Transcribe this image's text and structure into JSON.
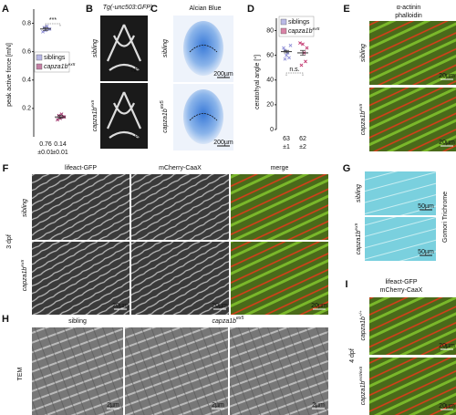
{
  "A": {
    "label": "A",
    "significance": "***",
    "y_label": "peak active force [mN]",
    "ylim": [
      0,
      0.9
    ],
    "yticks": [
      0.2,
      0.4,
      0.6,
      0.8
    ],
    "legend": [
      {
        "name": "siblings",
        "color": "#8c8cd6"
      },
      {
        "name": "capza1b",
        "sup": "ex5",
        "color": "#9c2a66"
      }
    ],
    "groups": [
      {
        "mean": 0.76,
        "sd": {
          "value": 0.01,
          "label": "±0.01"
        },
        "points": [
          0.74,
          0.75,
          0.76,
          0.77,
          0.78,
          0.76
        ]
      },
      {
        "mean": 0.14,
        "sd": {
          "value": 0.01,
          "label": "±0.01"
        },
        "points": [
          0.12,
          0.13,
          0.14,
          0.15,
          0.16,
          0.14
        ]
      }
    ]
  },
  "B": {
    "label": "B",
    "title": "Tg(-unc503:GFP)",
    "rows": [
      {
        "name": "sibling"
      },
      {
        "name": "capza1b",
        "sup": "ex5"
      }
    ],
    "annotations": [
      "hh",
      "hh"
    ]
  },
  "C": {
    "label": "C",
    "title": "Alcian Blue",
    "rows": [
      {
        "name": "sibling"
      },
      {
        "name": "capza1b",
        "sup": "ex5"
      }
    ],
    "scale_bars": [
      "200µm",
      "200µm"
    ]
  },
  "D": {
    "label": "D",
    "significance": "n.s.",
    "y_label": "ceratohyal angle [°]",
    "ylim": [
      0,
      90
    ],
    "yticks": [
      0,
      20,
      40,
      60,
      80
    ],
    "legend": [
      {
        "name": "siblings",
        "color": "#8c8cd6"
      },
      {
        "name": "capza1b",
        "sup": "ex5",
        "color": "#c0306a"
      }
    ],
    "groups": [
      {
        "mean": 63,
        "sd": {
          "value": 1,
          "label": "±1"
        },
        "points": [
          66,
          60,
          58,
          64,
          62,
          68,
          57
        ]
      },
      {
        "mean": 62,
        "sd": {
          "value": 2,
          "label": "±2"
        },
        "points": [
          70,
          69,
          55,
          52,
          62,
          66
        ]
      }
    ]
  },
  "E": {
    "label": "E",
    "stains": [
      {
        "name": "α-actinin",
        "color": "#2ea02e"
      },
      {
        "name": "phalloidin",
        "color": "#d02020"
      }
    ],
    "rows": [
      {
        "name": "sibling"
      },
      {
        "name": "capza1b",
        "sup": "ex5"
      }
    ],
    "scale_bars": [
      "20µm",
      "20µm"
    ]
  },
  "F": {
    "label": "F",
    "stage": "3 dpf",
    "columns": [
      {
        "name": "lifeact-GFP",
        "color": "#2ea02e"
      },
      {
        "name": "mCherry-CaaX",
        "color": "#d02020"
      },
      {
        "name": "merge",
        "color": "#111111"
      }
    ],
    "rows": [
      {
        "name": "sibling"
      },
      {
        "name": "capza1b",
        "sup": "ex5"
      }
    ],
    "scale_bars": [
      "20µm",
      "20µm",
      "20µm"
    ]
  },
  "G": {
    "label": "G",
    "stain": "Gomori Trichrome",
    "rows": [
      {
        "name": "sibling"
      },
      {
        "name": "capza1b",
        "sup": "ex5"
      }
    ],
    "scale_bars": [
      "50µm",
      "50µm"
    ]
  },
  "H": {
    "label": "H",
    "method": "TEM",
    "columns": [
      {
        "name": "sibling"
      },
      {
        "name": "capza1b",
        "sup": "ex5"
      }
    ],
    "scale_bars": [
      "2µm",
      "2µm",
      "2µm"
    ]
  },
  "I": {
    "label": "I",
    "stage": "4 dpf",
    "stains": [
      {
        "name": "lifeact-GFP",
        "color": "#2ea02e"
      },
      {
        "name": "mCherry-CaaX",
        "color": "#d02020"
      }
    ],
    "rows": [
      {
        "name": "capza1b",
        "sup": "+/+"
      },
      {
        "name": "capza1b",
        "sup": "ex5/ex5"
      }
    ],
    "scale_bars": [
      "20µm",
      "20µm"
    ]
  }
}
